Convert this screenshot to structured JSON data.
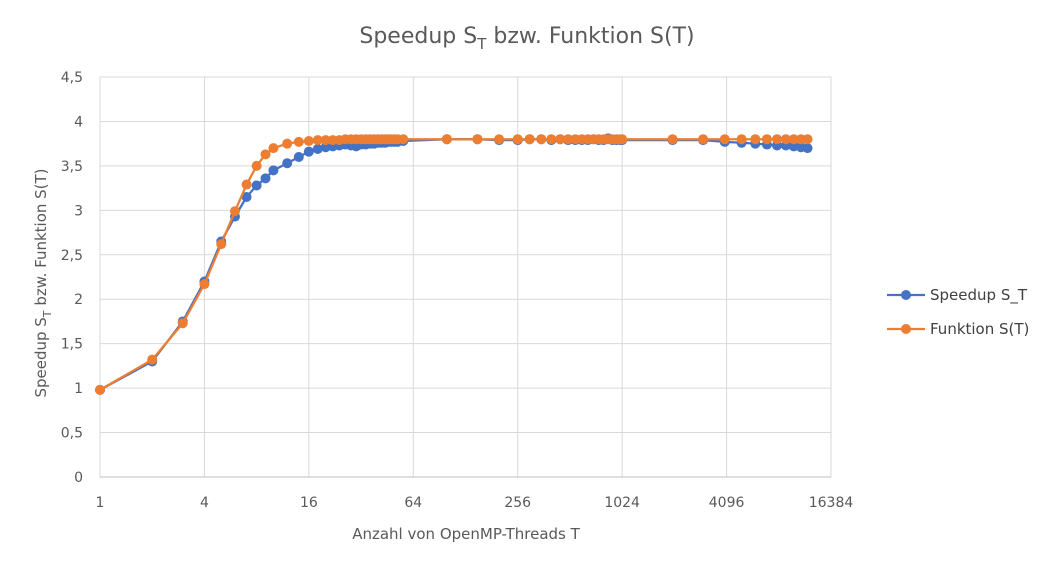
{
  "chart_data": {
    "type": "line",
    "title": {
      "main": "Speedup S",
      "sub": "T",
      "rest": " bzw. Funktion S(T)"
    },
    "xlabel": "Anzahl von OpenMP-Threads T",
    "ylabel": {
      "main": "Speedup S",
      "sub": "T",
      "rest": " bzw. Funktion S(T)"
    },
    "x_scale": "log2",
    "xlim": [
      1,
      16384
    ],
    "ylim": [
      0,
      4.5
    ],
    "x_ticks": [
      1,
      4,
      16,
      64,
      256,
      1024,
      4096,
      16384
    ],
    "x_tick_labels": [
      "1",
      "4",
      "16",
      "64",
      "256",
      "1024",
      "4096",
      "16384"
    ],
    "y_ticks": [
      0,
      0.5,
      1,
      1.5,
      2,
      2.5,
      3,
      3.5,
      4,
      4.5
    ],
    "y_tick_labels": [
      "0",
      "0,5",
      "1",
      "1,5",
      "2",
      "2,5",
      "3",
      "3,5",
      "4",
      "4,5"
    ],
    "grid": true,
    "legend_position": "right",
    "series": [
      {
        "name": "Speedup S_T",
        "color": "#4472c4",
        "points": [
          [
            1,
            0.98
          ],
          [
            2,
            1.3
          ],
          [
            3,
            1.75
          ],
          [
            4,
            2.2
          ],
          [
            5,
            2.65
          ],
          [
            6,
            2.93
          ],
          [
            7,
            3.15
          ],
          [
            8,
            3.28
          ],
          [
            9,
            3.36
          ],
          [
            10,
            3.45
          ],
          [
            12,
            3.53
          ],
          [
            14,
            3.6
          ],
          [
            16,
            3.66
          ],
          [
            18,
            3.69
          ],
          [
            20,
            3.71
          ],
          [
            22,
            3.72
          ],
          [
            24,
            3.73
          ],
          [
            26,
            3.74
          ],
          [
            28,
            3.73
          ],
          [
            30,
            3.72
          ],
          [
            32,
            3.74
          ],
          [
            34,
            3.74
          ],
          [
            36,
            3.75
          ],
          [
            38,
            3.75
          ],
          [
            40,
            3.76
          ],
          [
            42,
            3.76
          ],
          [
            44,
            3.76
          ],
          [
            46,
            3.77
          ],
          [
            48,
            3.77
          ],
          [
            50,
            3.77
          ],
          [
            52,
            3.77
          ],
          [
            56,
            3.78
          ],
          [
            100,
            3.8
          ],
          [
            150,
            3.8
          ],
          [
            200,
            3.79
          ],
          [
            256,
            3.79
          ],
          [
            300,
            3.8
          ],
          [
            350,
            3.8
          ],
          [
            400,
            3.79
          ],
          [
            450,
            3.8
          ],
          [
            500,
            3.79
          ],
          [
            550,
            3.79
          ],
          [
            600,
            3.79
          ],
          [
            650,
            3.79
          ],
          [
            700,
            3.8
          ],
          [
            750,
            3.79
          ],
          [
            800,
            3.79
          ],
          [
            850,
            3.81
          ],
          [
            900,
            3.79
          ],
          [
            950,
            3.79
          ],
          [
            1000,
            3.79
          ],
          [
            1024,
            3.79
          ],
          [
            2000,
            3.79
          ],
          [
            3000,
            3.79
          ],
          [
            4000,
            3.77
          ],
          [
            5000,
            3.76
          ],
          [
            6000,
            3.75
          ],
          [
            7000,
            3.74
          ],
          [
            8000,
            3.73
          ],
          [
            9000,
            3.73
          ],
          [
            10000,
            3.72
          ],
          [
            11000,
            3.71
          ],
          [
            12000,
            3.7
          ]
        ]
      },
      {
        "name": "Funktion S(T)",
        "color": "#ed7d31",
        "points": [
          [
            1,
            0.98
          ],
          [
            2,
            1.32
          ],
          [
            3,
            1.73
          ],
          [
            4,
            2.17
          ],
          [
            5,
            2.62
          ],
          [
            6,
            2.99
          ],
          [
            7,
            3.29
          ],
          [
            8,
            3.5
          ],
          [
            9,
            3.63
          ],
          [
            10,
            3.7
          ],
          [
            12,
            3.75
          ],
          [
            14,
            3.77
          ],
          [
            16,
            3.78
          ],
          [
            18,
            3.79
          ],
          [
            20,
            3.79
          ],
          [
            22,
            3.79
          ],
          [
            24,
            3.79
          ],
          [
            26,
            3.8
          ],
          [
            28,
            3.8
          ],
          [
            30,
            3.8
          ],
          [
            32,
            3.8
          ],
          [
            34,
            3.8
          ],
          [
            36,
            3.8
          ],
          [
            38,
            3.8
          ],
          [
            40,
            3.8
          ],
          [
            42,
            3.8
          ],
          [
            44,
            3.8
          ],
          [
            46,
            3.8
          ],
          [
            48,
            3.8
          ],
          [
            50,
            3.8
          ],
          [
            52,
            3.8
          ],
          [
            56,
            3.8
          ],
          [
            100,
            3.8
          ],
          [
            150,
            3.8
          ],
          [
            200,
            3.8
          ],
          [
            256,
            3.8
          ],
          [
            300,
            3.8
          ],
          [
            350,
            3.8
          ],
          [
            400,
            3.8
          ],
          [
            450,
            3.8
          ],
          [
            500,
            3.8
          ],
          [
            550,
            3.8
          ],
          [
            600,
            3.8
          ],
          [
            650,
            3.8
          ],
          [
            700,
            3.8
          ],
          [
            750,
            3.8
          ],
          [
            800,
            3.8
          ],
          [
            850,
            3.8
          ],
          [
            900,
            3.8
          ],
          [
            950,
            3.8
          ],
          [
            1000,
            3.8
          ],
          [
            1024,
            3.8
          ],
          [
            2000,
            3.8
          ],
          [
            3000,
            3.8
          ],
          [
            4000,
            3.8
          ],
          [
            5000,
            3.8
          ],
          [
            6000,
            3.8
          ],
          [
            7000,
            3.8
          ],
          [
            8000,
            3.8
          ],
          [
            9000,
            3.8
          ],
          [
            10000,
            3.8
          ],
          [
            11000,
            3.8
          ],
          [
            12000,
            3.8
          ]
        ]
      }
    ]
  }
}
